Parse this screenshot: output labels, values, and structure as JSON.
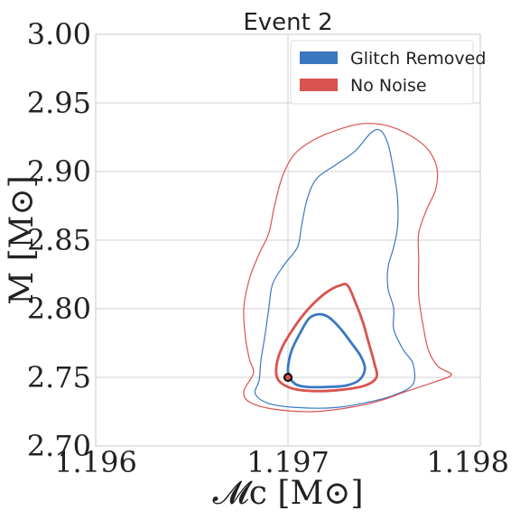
{
  "chart_data": {
    "type": "line",
    "title": "Event 2",
    "xlabel": "𝓜c [M⊙]",
    "ylabel": "M [M⊙]",
    "xlim": [
      1.196,
      1.198
    ],
    "ylim": [
      2.7,
      3.0
    ],
    "xticks": [
      "1.196",
      "1.197",
      "1.198"
    ],
    "yticks": [
      "2.70",
      "2.75",
      "2.80",
      "2.85",
      "2.90",
      "2.95",
      "3.00"
    ],
    "grid": true,
    "legend_position": "top-right",
    "colors": {
      "glitch_removed": "#3a78c2",
      "no_noise": "#d9534f"
    },
    "series": [
      {
        "name": "Glitch Removed",
        "contours": [
          {
            "level": "inner",
            "points": [
              [
                1.197,
                2.757
              ],
              [
                1.19701,
                2.75
              ],
              [
                1.19704,
                2.745
              ],
              [
                1.1971,
                2.743
              ],
              [
                1.1972,
                2.743
              ],
              [
                1.1973,
                2.744
              ],
              [
                1.19737,
                2.748
              ],
              [
                1.1974,
                2.756
              ],
              [
                1.19738,
                2.765
              ],
              [
                1.19733,
                2.775
              ],
              [
                1.19727,
                2.786
              ],
              [
                1.19721,
                2.794
              ],
              [
                1.19716,
                2.796
              ],
              [
                1.19711,
                2.793
              ],
              [
                1.19707,
                2.784
              ],
              [
                1.19702,
                2.77
              ]
            ]
          },
          {
            "level": "outer",
            "points": [
              [
                1.19685,
                2.748
              ],
              [
                1.19683,
                2.738
              ],
              [
                1.1969,
                2.731
              ],
              [
                1.19705,
                2.728
              ],
              [
                1.19725,
                2.728
              ],
              [
                1.19742,
                2.732
              ],
              [
                1.19755,
                2.737
              ],
              [
                1.19765,
                2.745
              ],
              [
                1.19765,
                2.76
              ],
              [
                1.1976,
                2.77
              ],
              [
                1.19755,
                2.785
              ],
              [
                1.19755,
                2.8
              ],
              [
                1.19752,
                2.815
              ],
              [
                1.19752,
                2.83
              ],
              [
                1.19755,
                2.845
              ],
              [
                1.19757,
                2.86
              ],
              [
                1.19757,
                2.88
              ],
              [
                1.19755,
                2.9
              ],
              [
                1.19752,
                2.92
              ],
              [
                1.19748,
                2.93
              ],
              [
                1.19743,
                2.928
              ],
              [
                1.19735,
                2.915
              ],
              [
                1.19725,
                2.905
              ],
              [
                1.19715,
                2.895
              ],
              [
                1.1971,
                2.88
              ],
              [
                1.19707,
                2.86
              ],
              [
                1.19705,
                2.845
              ],
              [
                1.19698,
                2.832
              ],
              [
                1.19692,
                2.818
              ],
              [
                1.1969,
                2.8
              ],
              [
                1.19688,
                2.78
              ],
              [
                1.19686,
                2.763
              ]
            ]
          }
        ]
      },
      {
        "name": "No Noise",
        "contours": [
          {
            "level": "inner",
            "points": [
              [
                1.19694,
                2.758
              ],
              [
                1.19695,
                2.748
              ],
              [
                1.19702,
                2.742
              ],
              [
                1.19713,
                2.74
              ],
              [
                1.19728,
                2.741
              ],
              [
                1.1974,
                2.744
              ],
              [
                1.19746,
                2.75
              ],
              [
                1.19745,
                2.76
              ],
              [
                1.19742,
                2.775
              ],
              [
                1.19739,
                2.79
              ],
              [
                1.19735,
                2.805
              ],
              [
                1.19731,
                2.817
              ],
              [
                1.19727,
                2.817
              ],
              [
                1.1972,
                2.812
              ],
              [
                1.19712,
                2.802
              ],
              [
                1.19705,
                2.79
              ],
              [
                1.19697,
                2.772
              ]
            ]
          },
          {
            "level": "outer",
            "points": [
              [
                1.19682,
                2.753
              ],
              [
                1.19677,
                2.74
              ],
              [
                1.1968,
                2.732
              ],
              [
                1.19692,
                2.727
              ],
              [
                1.19712,
                2.725
              ],
              [
                1.19732,
                2.728
              ],
              [
                1.19748,
                2.733
              ],
              [
                1.19762,
                2.74
              ],
              [
                1.19777,
                2.747
              ],
              [
                1.19785,
                2.752
              ],
              [
                1.19778,
                2.758
              ],
              [
                1.19773,
                2.77
              ],
              [
                1.1977,
                2.79
              ],
              [
                1.19768,
                2.81
              ],
              [
                1.19768,
                2.835
              ],
              [
                1.19768,
                2.855
              ],
              [
                1.19772,
                2.872
              ],
              [
                1.19777,
                2.888
              ],
              [
                1.19777,
                2.905
              ],
              [
                1.1977,
                2.92
              ],
              [
                1.19755,
                2.932
              ],
              [
                1.1974,
                2.935
              ],
              [
                1.19725,
                2.93
              ],
              [
                1.19712,
                2.922
              ],
              [
                1.19703,
                2.912
              ],
              [
                1.19697,
                2.896
              ],
              [
                1.19693,
                2.875
              ],
              [
                1.1969,
                2.855
              ],
              [
                1.19685,
                2.84
              ],
              [
                1.1968,
                2.822
              ],
              [
                1.19677,
                2.8
              ],
              [
                1.19678,
                2.778
              ],
              [
                1.1968,
                2.763
              ]
            ]
          }
        ]
      }
    ],
    "true_value": {
      "x": 1.197,
      "y": 2.75
    }
  }
}
